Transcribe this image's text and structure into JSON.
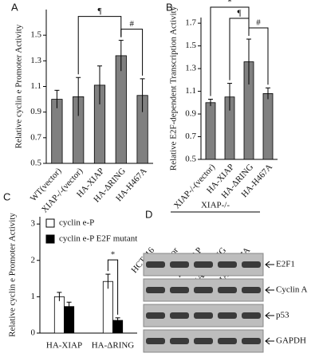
{
  "chart_data": [
    {
      "type": "bar",
      "panel": "A",
      "y_label": "Relative cyclin e Promoter Activity",
      "categories": [
        "WT(vector)",
        "XIAP-/-(vector)",
        "HA-XIAP",
        "HA-ΔRING",
        "HA-H467A"
      ],
      "values": [
        1.0,
        1.02,
        1.11,
        1.34,
        1.03
      ],
      "errors": [
        0.07,
        0.15,
        0.15,
        0.12,
        0.13
      ],
      "color": "#808080",
      "ylim": [
        0.5,
        1.7
      ],
      "yticks": [
        0.5,
        0.7,
        0.9,
        1.1,
        1.3,
        1.5
      ],
      "annotations": [
        "¶",
        "#"
      ]
    },
    {
      "type": "bar",
      "panel": "B",
      "y_label": "Relative E2F-dependent Transcription Activity",
      "categories": [
        "XIAP-/-(vector)",
        "HA-XIAP",
        "HA-ΔRING",
        "HA-H467A"
      ],
      "values": [
        1.0,
        1.05,
        1.36,
        1.08
      ],
      "errors": [
        0.03,
        0.12,
        0.2,
        0.05
      ],
      "color": "#808080",
      "ylim": [
        0.5,
        1.75
      ],
      "yticks": [
        0.5,
        0.7,
        0.9,
        1.1,
        1.3,
        1.5,
        1.7
      ],
      "annotations": [
        "*",
        "¶",
        "#"
      ]
    },
    {
      "type": "grouped_bar",
      "panel": "C",
      "y_label": "Relative cyclin e Promoter Activity",
      "categories": [
        "HA-XIAP",
        "HA-ΔRING"
      ],
      "series": [
        {
          "name": "cyclin e-P",
          "color": "#ffffff",
          "values": [
            1.0,
            1.42
          ],
          "errors": [
            0.12,
            0.2
          ]
        },
        {
          "name": "cyclin e-P E2F mutant",
          "color": "#000000",
          "values": [
            0.73,
            0.35
          ],
          "errors": [
            0.12,
            0.07
          ]
        }
      ],
      "ylim": [
        0,
        3.2
      ],
      "yticks": [
        0,
        1,
        2,
        3
      ],
      "legend": "top-left",
      "annotations": [
        "*"
      ]
    }
  ],
  "blot": {
    "panel": "D",
    "group": "XIAP-/-",
    "lanes": [
      "HCT116",
      "Vector",
      "HA-XIAP",
      "HA-XIAP ΔRING",
      "HA-XIAP H467A"
    ],
    "rows": [
      "E2F1",
      "Cyclin A",
      "p53",
      "GAPDH"
    ]
  }
}
